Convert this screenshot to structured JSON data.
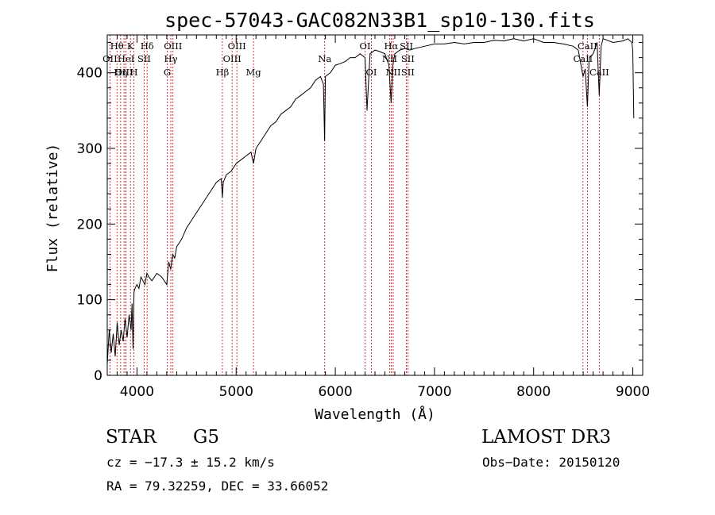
{
  "chart_data": {
    "type": "line",
    "title": "spec-57043-GAC082N33B1_sp10-130.fits",
    "xlabel": "Wavelength (Å)",
    "ylabel": "Flux (relative)",
    "xlim": [
      3700,
      9100
    ],
    "ylim": [
      0,
      450
    ],
    "xticks": [
      4000,
      5000,
      6000,
      7000,
      8000,
      9000
    ],
    "yticks": [
      0,
      100,
      200,
      300,
      400
    ],
    "xtick_labels": [
      "4000",
      "5000",
      "6000",
      "7000",
      "8000",
      "9000"
    ],
    "ytick_labels": [
      "0",
      "100",
      "200",
      "300",
      "400"
    ],
    "series": [
      {
        "name": "spectrum",
        "x": [
          3700,
          3720,
          3740,
          3760,
          3780,
          3800,
          3820,
          3840,
          3860,
          3880,
          3900,
          3920,
          3940,
          3950,
          3960,
          3970,
          3980,
          4000,
          4020,
          4040,
          4060,
          4080,
          4100,
          4120,
          4150,
          4200,
          4250,
          4300,
          4320,
          4340,
          4360,
          4380,
          4400,
          4450,
          4500,
          4550,
          4600,
          4650,
          4700,
          4750,
          4800,
          4850,
          4861,
          4870,
          4900,
          4950,
          5000,
          5050,
          5100,
          5150,
          5175,
          5200,
          5250,
          5300,
          5350,
          5400,
          5450,
          5500,
          5550,
          5600,
          5650,
          5700,
          5750,
          5800,
          5850,
          5880,
          5892,
          5900,
          5950,
          6000,
          6050,
          6100,
          6150,
          6200,
          6250,
          6300,
          6320,
          6350,
          6400,
          6450,
          6500,
          6540,
          6563,
          6580,
          6600,
          6650,
          6700,
          6750,
          6800,
          6900,
          7000,
          7100,
          7200,
          7300,
          7400,
          7500,
          7600,
          7700,
          7800,
          7900,
          8000,
          8100,
          8200,
          8300,
          8400,
          8450,
          8498,
          8520,
          8542,
          8560,
          8600,
          8640,
          8662,
          8680,
          8700,
          8800,
          8900,
          8950,
          8990,
          9000,
          9010
        ],
        "y": [
          15,
          60,
          30,
          55,
          25,
          70,
          40,
          60,
          45,
          75,
          50,
          80,
          60,
          95,
          35,
          110,
          115,
          120,
          115,
          130,
          125,
          120,
          135,
          130,
          125,
          135,
          130,
          120,
          150,
          140,
          160,
          155,
          170,
          180,
          195,
          205,
          215,
          225,
          235,
          245,
          255,
          260,
          235,
          255,
          265,
          270,
          280,
          285,
          290,
          295,
          280,
          300,
          310,
          320,
          330,
          335,
          345,
          350,
          355,
          365,
          370,
          375,
          380,
          390,
          395,
          385,
          310,
          395,
          400,
          410,
          412,
          415,
          420,
          420,
          425,
          420,
          350,
          425,
          430,
          428,
          425,
          410,
          360,
          410,
          425,
          430,
          432,
          430,
          432,
          435,
          438,
          438,
          440,
          438,
          440,
          440,
          443,
          442,
          445,
          442,
          445,
          440,
          440,
          438,
          435,
          430,
          395,
          405,
          355,
          420,
          425,
          440,
          370,
          435,
          445,
          440,
          442,
          445,
          440,
          430,
          340
        ]
      }
    ],
    "line_markers": [
      {
        "label": "Hθ",
        "x": 3798,
        "row": 1
      },
      {
        "label": "OII",
        "x": 3727,
        "row": 2
      },
      {
        "label": "OIII",
        "x": 3869,
        "row": 3
      },
      {
        "label": "Hη",
        "x": 3835,
        "row": 3
      },
      {
        "label": "HeI",
        "x": 3889,
        "row": 2
      },
      {
        "label": "K",
        "x": 3934,
        "row": 1
      },
      {
        "label": "SII",
        "x": 4072,
        "row": 2
      },
      {
        "label": "H",
        "x": 3969,
        "row": 3
      },
      {
        "label": "Hδ",
        "x": 4102,
        "row": 1
      },
      {
        "label": "OIII",
        "x": 4363,
        "row": 1
      },
      {
        "label": "Hγ",
        "x": 4341,
        "row": 2
      },
      {
        "label": "G",
        "x": 4305,
        "row": 3
      },
      {
        "label": "OIII",
        "x": 5007,
        "row": 1
      },
      {
        "label": "OIII",
        "x": 4959,
        "row": 2
      },
      {
        "label": "Hβ",
        "x": 4861,
        "row": 3
      },
      {
        "label": "Mg",
        "x": 5175,
        "row": 3
      },
      {
        "label": "Na",
        "x": 5893,
        "row": 2
      },
      {
        "label": "OI",
        "x": 6300,
        "row": 1
      },
      {
        "label": "OI",
        "x": 6364,
        "row": 3
      },
      {
        "label": "Hα",
        "x": 6563,
        "row": 1
      },
      {
        "label": "NII",
        "x": 6548,
        "row": 2
      },
      {
        "label": "NII",
        "x": 6584,
        "row": 3
      },
      {
        "label": "SII",
        "x": 6717,
        "row": 1
      },
      {
        "label": "SII",
        "x": 6731,
        "row": 2
      },
      {
        "label": "SII",
        "x": 6731,
        "row": 3
      },
      {
        "label": "CaII",
        "x": 8542,
        "row": 1
      },
      {
        "label": "CaII",
        "x": 8498,
        "row": 2
      },
      {
        "label": "CaII",
        "x": 8662,
        "row": 3
      }
    ]
  },
  "info": {
    "object_class": "STAR",
    "subclass": "G5",
    "survey": "LAMOST DR3",
    "cz": "cz = −17.3 ± 15.2 km/s",
    "obs_date": "Obs−Date: 20150120",
    "coords": "RA =  79.32259, DEC =  33.66052"
  },
  "colors": {
    "spectrum": "#000000",
    "marker_line": "#cc0000",
    "axis": "#000000",
    "background": "#ffffff"
  }
}
